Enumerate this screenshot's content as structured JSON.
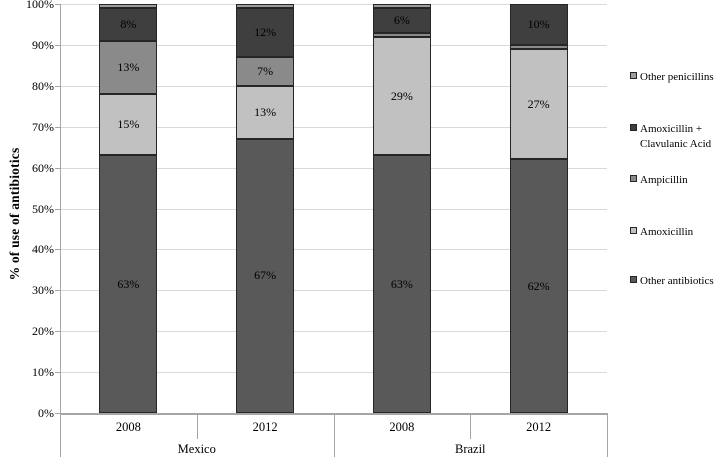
{
  "chart_data": {
    "type": "bar",
    "stacked": true,
    "title": "",
    "xlabel": "",
    "ylabel": "% of use of antibiotics",
    "ylim": [
      0,
      100
    ],
    "ytick_labels": [
      "0%",
      "10%",
      "20%",
      "30%",
      "40%",
      "50%",
      "60%",
      "70%",
      "80%",
      "90%",
      "100%"
    ],
    "grid": true,
    "legend_position": "right",
    "groups": [
      {
        "label": "Mexico",
        "categories": [
          "2008",
          "2012"
        ]
      },
      {
        "label": "Brazil",
        "categories": [
          "2008",
          "2012"
        ]
      }
    ],
    "categories": [
      "Mexico 2008",
      "Mexico 2012",
      "Brazil 2008",
      "Brazil 2012"
    ],
    "series": [
      {
        "name": "Other antibiotics",
        "color": "#595959",
        "values": [
          63,
          67,
          63,
          62
        ]
      },
      {
        "name": "Amoxicillin",
        "color": "#c1c1c1",
        "values": [
          15,
          13,
          29,
          27
        ]
      },
      {
        "name": "Ampicillin",
        "color": "#8a8a8a",
        "values": [
          13,
          7,
          1,
          1
        ]
      },
      {
        "name": "Amoxicillin + Clavulanic Acid",
        "color": "#3f3f3f",
        "values": [
          8,
          12,
          6,
          10
        ]
      },
      {
        "name": "Other penicillins",
        "color": "#9e9e9e",
        "values": [
          1,
          1,
          1,
          0
        ]
      }
    ],
    "data_labels": {
      "format": "{v}%",
      "min_value_to_show": 5,
      "visible_labels": [
        "63%",
        "15%",
        "13%",
        "8%",
        "67%",
        "13%",
        "7%",
        "12%",
        "63%",
        "29%",
        "6%",
        "62%",
        "27%",
        "10%"
      ]
    },
    "legend_entries": [
      "Other penicillins",
      "Amoxicillin + Clavulanic Acid",
      "Ampicillin",
      "Amoxicillin",
      "Other antibiotics"
    ]
  }
}
